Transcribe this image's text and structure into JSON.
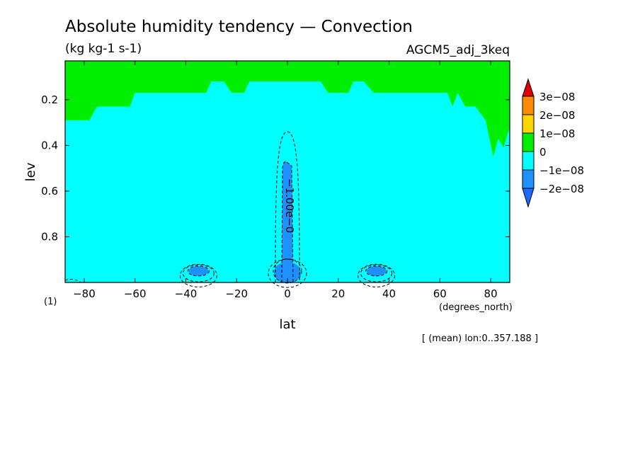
{
  "chart_data": {
    "type": "filled-contour",
    "title": "Absolute humidity tendency — Convection",
    "units": "(kg kg-1 s-1)",
    "experiment": "AGCM5_adj_3keq",
    "panel_label": "(1)",
    "xlabel": "lat",
    "xunits": "(degrees_north)",
    "ylabel": "lev",
    "footnote": "[ (mean) lon:0..357.188 ]",
    "xlim": [
      -87.5,
      87.5
    ],
    "ylim": [
      1.0,
      0.03
    ],
    "xticks": [
      -80,
      -60,
      -40,
      -20,
      0,
      20,
      40,
      60,
      80
    ],
    "xtick_labels": [
      "−80",
      "−60",
      "−40",
      "−20",
      "0",
      "20",
      "40",
      "60",
      "80"
    ],
    "yticks": [
      0.2,
      0.4,
      0.6,
      0.8
    ],
    "ytick_labels": [
      "0.2",
      "0.4",
      "0.6",
      "0.8"
    ],
    "contour_label": "−1.00e−0",
    "levels": [
      {
        "label": "3e−08",
        "color": "#ff8c00"
      },
      {
        "label": "2e−08",
        "color": "#ffd700"
      },
      {
        "label": "1e−08",
        "color": "#00ee00"
      },
      {
        "label": "0",
        "color": "#00ffff"
      },
      {
        "label": "−1e−08",
        "color": "#1e90ff"
      },
      {
        "label": "−2e−08",
        "color": "#1e90ff"
      }
    ],
    "colorbar_colors": {
      "above": "#e00000",
      "c1": "#ff8c00",
      "c2": "#ffd700",
      "c3": "#00ee00",
      "c4": "#00ffff",
      "c5": "#1e90ff",
      "below": "#1e69ff"
    },
    "boundary_zero_line": [
      [
        -87.5,
        0.29
      ],
      [
        -78,
        0.29
      ],
      [
        -75,
        0.23
      ],
      [
        -62,
        0.23
      ],
      [
        -60,
        0.17
      ],
      [
        -32,
        0.17
      ],
      [
        -30,
        0.12
      ],
      [
        -25,
        0.12
      ],
      [
        -22,
        0.17
      ],
      [
        -17,
        0.17
      ],
      [
        -15,
        0.12
      ],
      [
        13,
        0.12
      ],
      [
        16,
        0.17
      ],
      [
        24,
        0.17
      ],
      [
        26,
        0.12
      ],
      [
        30,
        0.12
      ],
      [
        34,
        0.17
      ],
      [
        63,
        0.17
      ],
      [
        65,
        0.23
      ],
      [
        67,
        0.17
      ],
      [
        70,
        0.23
      ],
      [
        74,
        0.23
      ],
      [
        78,
        0.29
      ],
      [
        81,
        0.45
      ],
      [
        83,
        0.37
      ],
      [
        85,
        0.41
      ],
      [
        87.5,
        0.32
      ]
    ],
    "negative_regions": [
      {
        "name": "equatorial-column",
        "lat": 0,
        "lev_top": 0.47,
        "lev_bottom": 1.0,
        "value_class": "-1e-08"
      },
      {
        "name": "south-subtropical-blob",
        "lat": -35,
        "lev": 0.95,
        "value_class": "-1e-08"
      },
      {
        "name": "north-subtropical-blob",
        "lat": 35,
        "lev": 0.95,
        "value_class": "-1e-08"
      }
    ]
  }
}
